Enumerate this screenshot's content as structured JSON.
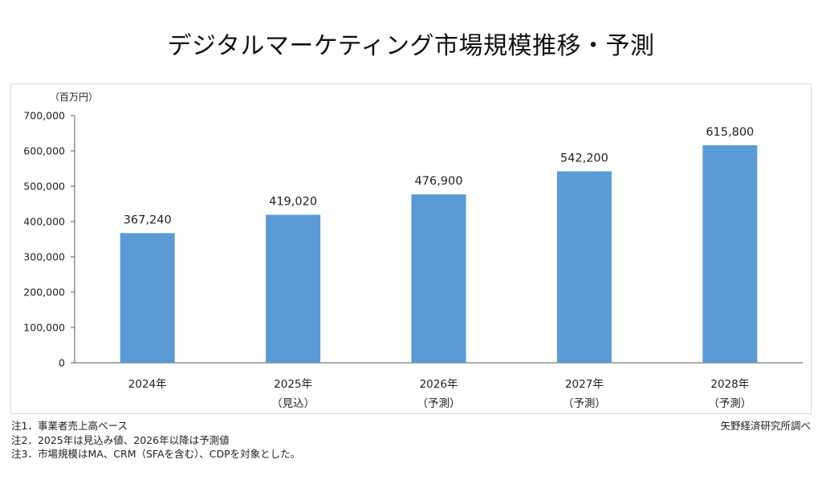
{
  "page_title": "デジタルマーケティング市場規模推移・予測",
  "chart_data": {
    "type": "bar",
    "title": "デジタルマーケティング市場規模推移・予測",
    "unit_label": "（百万円）",
    "xlabel": "",
    "ylabel": "（百万円）",
    "ylim": [
      0,
      700000
    ],
    "yticks": [
      "0",
      "100,000",
      "200,000",
      "300,000",
      "400,000",
      "500,000",
      "600,000",
      "700,000"
    ],
    "ytick_values": [
      0,
      100000,
      200000,
      300000,
      400000,
      500000,
      600000,
      700000
    ],
    "categories": [
      "2024年",
      "2025年",
      "2026年",
      "2027年",
      "2028年"
    ],
    "category_sublabels": [
      "",
      "（見込）",
      "（予測）",
      "（予測）",
      "（予測）"
    ],
    "values": [
      367240,
      419020,
      476900,
      542200,
      615800
    ],
    "value_labels": [
      "367,240",
      "419,020",
      "476,900",
      "542,200",
      "615,800"
    ],
    "bar_color": "#5b9bd5",
    "grid": false
  },
  "notes": [
    "注1．事業者売上高ベース",
    "注2．2025年は見込み値、2026年以降は予測値",
    "注3．市場規模はMA、CRM（SFAを含む）、CDPを対象とした。"
  ],
  "source": "矢野経済研究所調べ",
  "colors": {
    "axis": "#595959",
    "text": "#222222"
  }
}
